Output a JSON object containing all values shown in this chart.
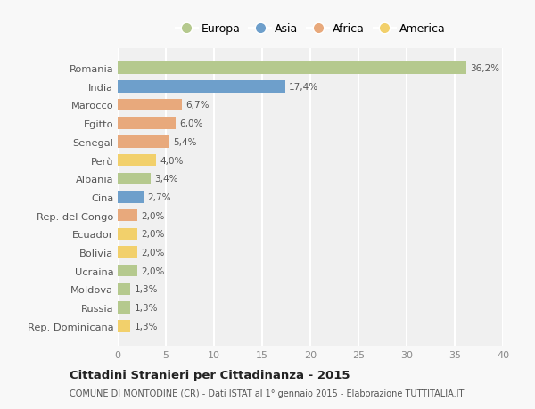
{
  "countries": [
    "Romania",
    "India",
    "Marocco",
    "Egitto",
    "Senegal",
    "Perù",
    "Albania",
    "Cina",
    "Rep. del Congo",
    "Ecuador",
    "Bolivia",
    "Ucraina",
    "Moldova",
    "Russia",
    "Rep. Dominicana"
  ],
  "values": [
    36.2,
    17.4,
    6.7,
    6.0,
    5.4,
    4.0,
    3.4,
    2.7,
    2.0,
    2.0,
    2.0,
    2.0,
    1.3,
    1.3,
    1.3
  ],
  "labels": [
    "36,2%",
    "17,4%",
    "6,7%",
    "6,0%",
    "5,4%",
    "4,0%",
    "3,4%",
    "2,7%",
    "2,0%",
    "2,0%",
    "2,0%",
    "2,0%",
    "1,3%",
    "1,3%",
    "1,3%"
  ],
  "colors": [
    "#b5c98e",
    "#6e9fcb",
    "#e8a97c",
    "#e8a97c",
    "#e8a97c",
    "#f2d06b",
    "#b5c98e",
    "#6e9fcb",
    "#e8a97c",
    "#f2d06b",
    "#f2d06b",
    "#b5c98e",
    "#b5c98e",
    "#b5c98e",
    "#f2d06b"
  ],
  "legend_labels": [
    "Europa",
    "Asia",
    "Africa",
    "America"
  ],
  "legend_colors": [
    "#b5c98e",
    "#6e9fcb",
    "#e8a97c",
    "#f2d06b"
  ],
  "title": "Cittadini Stranieri per Cittadinanza - 2015",
  "subtitle": "COMUNE DI MONTODINE (CR) - Dati ISTAT al 1° gennaio 2015 - Elaborazione TUTTITALIA.IT",
  "xlim": [
    0,
    40
  ],
  "xticks": [
    0,
    5,
    10,
    15,
    20,
    25,
    30,
    35,
    40
  ],
  "background_color": "#f8f8f8",
  "plot_bg_color": "#f0f0f0",
  "grid_color": "#ffffff"
}
